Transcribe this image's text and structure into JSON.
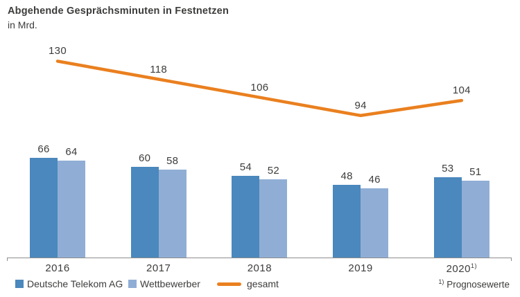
{
  "header": {
    "title": "Abgehende Gesprächsminuten in Festnetzen",
    "unit": "in Mrd."
  },
  "chart_data": {
    "type": "bar",
    "title": "Abgehende Gesprächsminuten in Festnetzen",
    "ylabel": "in Mrd.",
    "categories": [
      "2016",
      "2017",
      "2018",
      "2019",
      "2020"
    ],
    "category_superscripts": [
      "",
      "",
      "",
      "",
      "1)"
    ],
    "series": [
      {
        "name": "Deutsche Telekom AG",
        "type": "bar",
        "color": "#4A88BD",
        "values": [
          66,
          60,
          54,
          48,
          53
        ]
      },
      {
        "name": "Wettbewerber",
        "type": "bar",
        "color": "#90AED5",
        "values": [
          64,
          58,
          52,
          46,
          51
        ]
      },
      {
        "name": "gesamt",
        "type": "line",
        "color": "#EA801F",
        "values": [
          130,
          118,
          106,
          94,
          104
        ]
      }
    ],
    "ylim": [
      0,
      170
    ],
    "grid": false,
    "legend_position": "bottom",
    "value_labels": true
  },
  "footnote": {
    "marker": "1)",
    "text": "Prognosewerte"
  },
  "colors": {
    "text": "#3C3C3B",
    "axis": "#8C8C8C",
    "telekom_bar": "#4A88BD",
    "competitor_bar": "#90AED5",
    "total_line": "#EA801F"
  }
}
